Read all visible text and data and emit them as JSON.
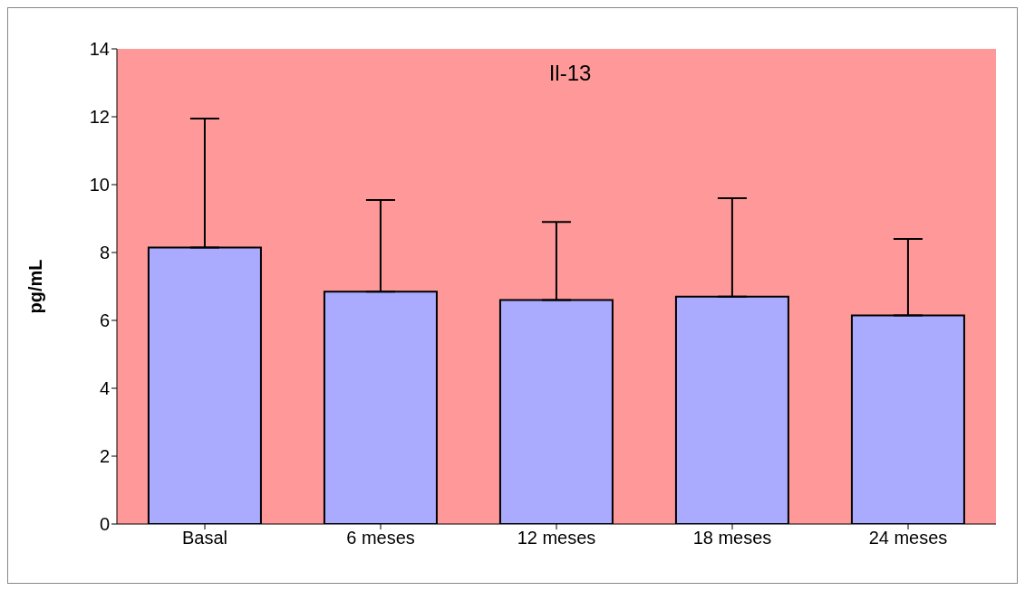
{
  "chart_data": {
    "type": "bar",
    "title": "Il-13",
    "ylabel": "pg/mL",
    "categories": [
      "Basal",
      "6 meses",
      "12 meses",
      "18 meses",
      "24 meses"
    ],
    "values": [
      8.15,
      6.85,
      6.6,
      6.7,
      6.15
    ],
    "errors": [
      [
        8.15,
        11.95
      ],
      [
        6.85,
        9.55
      ],
      [
        6.6,
        8.9
      ],
      [
        6.7,
        9.6
      ],
      [
        6.15,
        8.4
      ]
    ],
    "color": "#aaaaff",
    "ylim": [
      0,
      14
    ],
    "yticks": [
      0,
      2,
      4,
      6,
      8,
      10,
      12,
      14
    ],
    "grid": false
  }
}
